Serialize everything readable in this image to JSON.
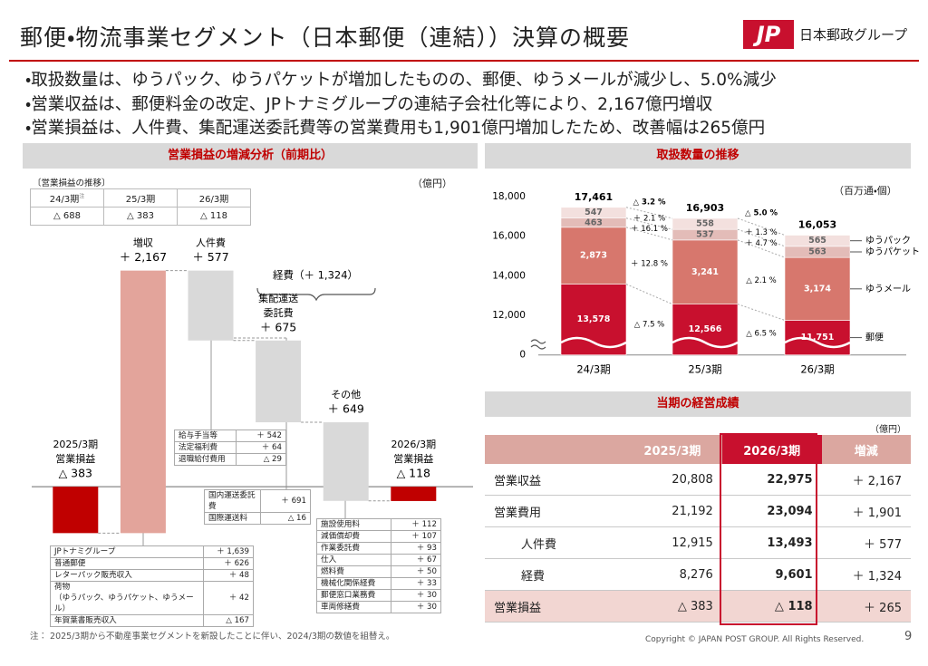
{
  "header": {
    "title": "郵便・物流事業セグメント（日本郵便（連結））決算の概要",
    "logo_mark": "JP",
    "logo_text": "日本郵政グループ"
  },
  "bullets": [
    "・取扱数量は、ゆうパック、ゆうパケットが増加したものの、郵便、ゆうメールが減少し、5.0%減少",
    "・営業収益は、郵便料金の改定、JPトナミグループの連結子会社化等により、2,167億円増収",
    "・営業損益は、人件費、集配運送委託費等の営業費用も1,901億円増加したため、改善幅は265億円"
  ],
  "left_panel": {
    "title": "営業損益の増減分析（前期比）",
    "unit": "（億円）",
    "history": {
      "caption": "〔営業損益の推移〕",
      "headers": [
        "24/3期",
        "25/3期",
        "26/3期"
      ],
      "note_mark": "注",
      "values": [
        "△ 688",
        "△ 383",
        "△ 118"
      ]
    },
    "breakdowns": [
      {
        "rows": [
          [
            "JPトナミグループ",
            "＋ 1,639"
          ],
          [
            "普通郵便",
            "＋ 626"
          ],
          [
            "レターパック販売収入",
            "＋ 48"
          ],
          [
            "荷物\n（ゆうパック、ゆうパケット、ゆうメール）",
            "＋ 42"
          ],
          [
            "年賀葉書販売収入",
            "△ 167"
          ]
        ]
      },
      {
        "rows": [
          [
            "給与手当等",
            "＋ 542"
          ],
          [
            "法定福利費",
            "＋ 64"
          ],
          [
            "退職給付費用",
            "△ 29"
          ]
        ]
      },
      {
        "rows": [
          [
            "国内運送委託費",
            "＋ 691"
          ],
          [
            "国際運送料",
            "△ 16"
          ]
        ]
      },
      {
        "rows": [
          [
            "施設使用料",
            "＋ 112"
          ],
          [
            "減価償却費",
            "＋ 107"
          ],
          [
            "作業委託費",
            "＋ 93"
          ],
          [
            "仕入",
            "＋ 67"
          ],
          [
            "燃料費",
            "＋ 50"
          ],
          [
            "機械化関係経費",
            "＋ 33"
          ],
          [
            "郵便窓口業務費",
            "＋ 30"
          ],
          [
            "車両修繕費",
            "＋ 30"
          ]
        ]
      }
    ],
    "note": "注： 2025/3期から不動産事業セグメントを新設したことに伴い、2024/3期の数値を組替え。"
  },
  "chart_data": [
    {
      "type": "waterfall",
      "categories": [
        [
          "2025/3期",
          "営業損益"
        ],
        [
          "増収"
        ],
        [
          "人件費"
        ],
        [
          "集配運送",
          "委託費"
        ],
        [
          "その他"
        ],
        [
          "2026/3期",
          "営業損益"
        ]
      ],
      "values": [
        -383,
        2167,
        577,
        675,
        649,
        -118
      ],
      "value_labels": [
        "△ 383",
        "＋ 2,167",
        "＋ 577",
        "＋ 675",
        "＋ 649",
        "△ 118"
      ],
      "measure": [
        "total",
        "increase",
        "decrease",
        "decrease",
        "decrease",
        "total"
      ],
      "colors": {
        "total": "#c00000",
        "increase": "#e3a49b",
        "decrease": "#d9d9d9"
      },
      "ylim": [
        -500,
        2200
      ],
      "annotation": "経費（＋ 1,324）"
    },
    {
      "type": "stacked_bar",
      "title": "取扱数量の推移",
      "unit": "（百万通・個）",
      "categories": [
        "24/3期",
        "25/3期",
        "26/3期"
      ],
      "series": [
        {
          "name": "郵便",
          "color": "#c8102e",
          "values": [
            13578,
            12566,
            11751
          ],
          "value_labels": [
            "13,578",
            "12,566",
            "11,751"
          ],
          "change_labels": [
            "△ 7.5 %",
            "△ 6.5 %"
          ]
        },
        {
          "name": "ゆうメール",
          "color": "#d7776d",
          "values": [
            2873,
            3241,
            3174
          ],
          "value_labels": [
            "2,873",
            "3,241",
            "3,174"
          ],
          "change_labels": [
            "＋ 12.8 %",
            "△ 2.1 %"
          ]
        },
        {
          "name": "ゆうパケット",
          "color": "#e3bcb8",
          "values": [
            463,
            537,
            563
          ],
          "value_labels": [
            "463",
            "537",
            "563"
          ],
          "change_labels": [
            "＋ 16.1 %",
            "＋ 4.7 %"
          ]
        },
        {
          "name": "ゆうパック",
          "color": "#f3e0de",
          "values": [
            547,
            558,
            565
          ],
          "value_labels": [
            "547",
            "558",
            "565"
          ],
          "change_labels": [
            "＋ 2.1 %",
            "＋ 1.3 %"
          ]
        }
      ],
      "totals": {
        "values": [
          17461,
          16903,
          16053
        ],
        "value_labels": [
          "17,461",
          "16,903",
          "16,053"
        ],
        "change_labels": [
          "△ 3.2 %",
          "△ 5.0 %"
        ]
      },
      "ylim": [
        0,
        18000
      ],
      "axis_break": [
        0,
        10000
      ],
      "yticks": [
        0,
        {
          "value": 12000,
          "label": "12,000"
        },
        {
          "value": 14000,
          "label": "14,000"
        },
        {
          "value": 16000,
          "label": "16,000"
        },
        {
          "value": 18000,
          "label": "18,000"
        }
      ],
      "grid": false
    }
  ],
  "results": {
    "title": "当期の経営成績",
    "unit": "（億円）",
    "headers": [
      "2025/3期",
      "2026/3期",
      "増減"
    ],
    "rows": [
      [
        "営業収益",
        "20,808",
        "22,975",
        "＋ 2,167"
      ],
      [
        "営業費用",
        "21,192",
        "23,094",
        "＋ 1,901"
      ],
      [
        "人件費",
        "12,915",
        "13,493",
        "＋ 577"
      ],
      [
        "経費",
        "8,276",
        "9,601",
        "＋ 1,324"
      ],
      [
        "営業損益",
        "△ 383",
        "△ 118",
        "＋ 265"
      ]
    ]
  },
  "footer": {
    "copyright": "Copyright ©  JAPAN POST GROUP.  All Rights Reserved.",
    "page": "9"
  }
}
